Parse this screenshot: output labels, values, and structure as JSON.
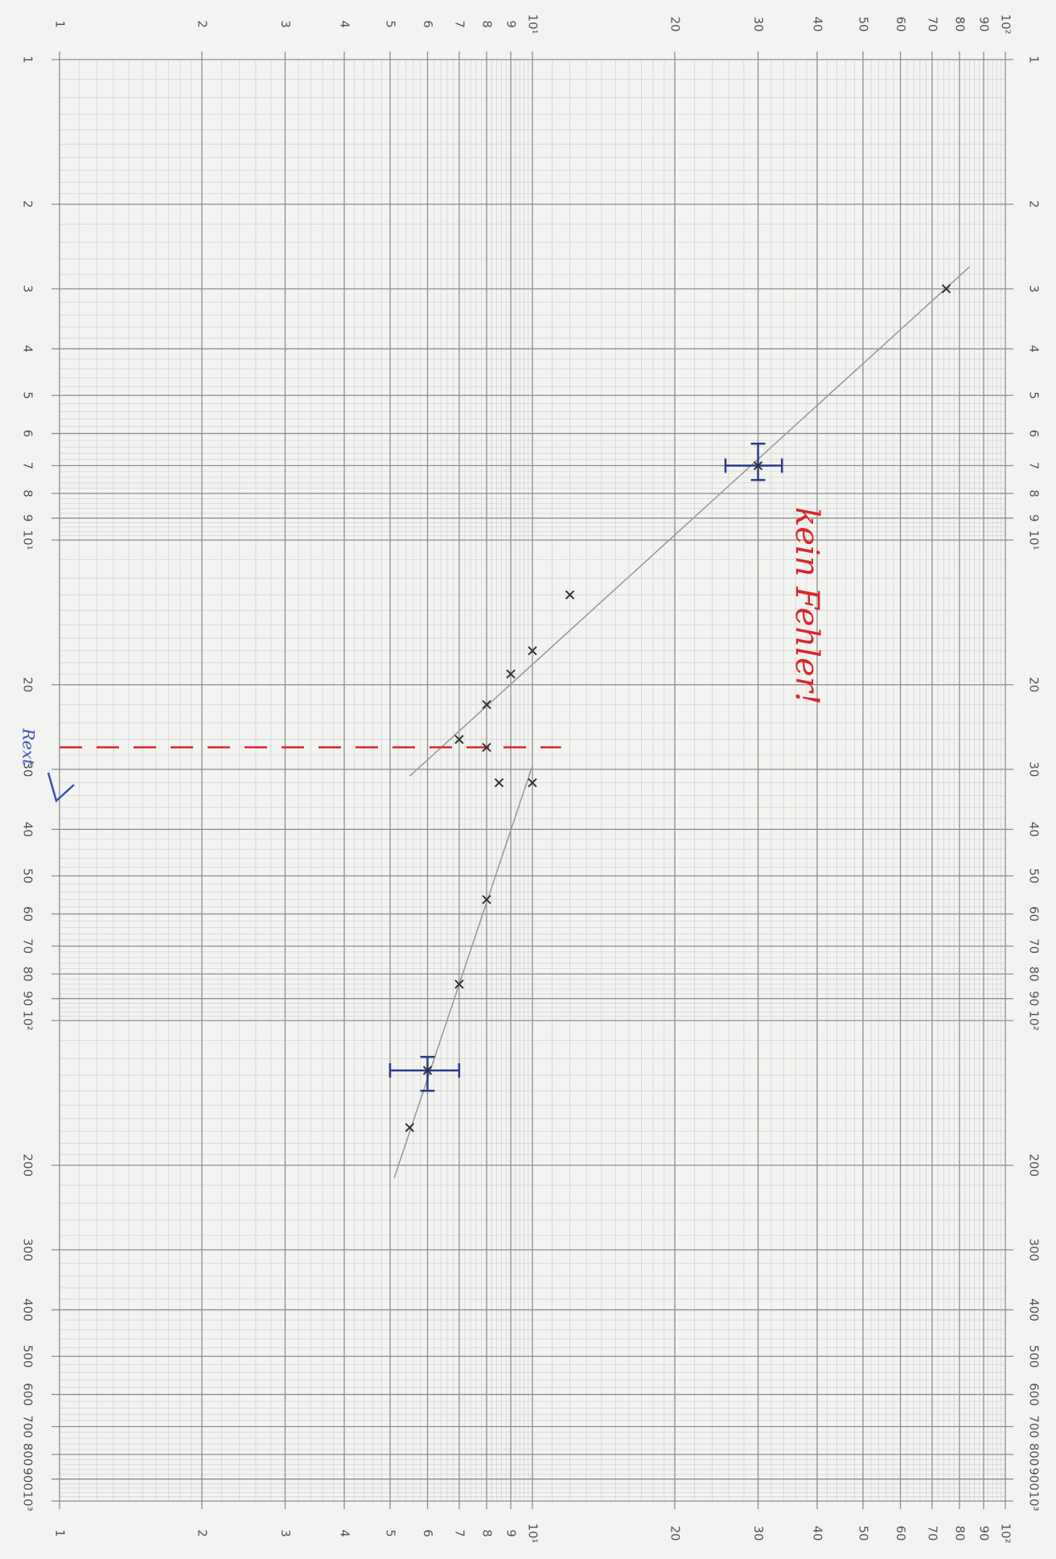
{
  "chart_data": {
    "type": "scatter",
    "xscale": "log",
    "yscale": "log",
    "xlim": [
      1,
      100
    ],
    "ylim": [
      1,
      1000
    ],
    "xticks": [
      1,
      2,
      3,
      4,
      5,
      6,
      7,
      8,
      9,
      {
        "value": 10,
        "label": "10¹"
      },
      20,
      30,
      40,
      50,
      60,
      70,
      80,
      90,
      {
        "value": 100,
        "label": "10²"
      }
    ],
    "yticks": [
      1,
      2,
      3,
      4,
      5,
      6,
      7,
      8,
      9,
      {
        "value": 10,
        "label": "10¹"
      },
      20,
      30,
      40,
      50,
      60,
      70,
      80,
      90,
      {
        "value": 100,
        "label": "10²"
      },
      200,
      300,
      400,
      500,
      600,
      700,
      800,
      900,
      {
        "value": 1000,
        "label": "10³"
      }
    ],
    "grid": true,
    "color": "#333333",
    "x": [
      75,
      30,
      12,
      10,
      9,
      8,
      7,
      8,
      8.5,
      10,
      8,
      7,
      6,
      5.5
    ],
    "values": [
      3.0,
      7,
      13,
      17,
      19,
      22,
      26,
      27,
      32,
      32,
      56,
      84,
      127,
      167
    ],
    "error_bars": {
      "color": "#2a3a8a",
      "items": [
        {
          "x": 30,
          "y": 7,
          "xerr": [
            25.6,
            33.7
          ],
          "yerr": [
            6.3,
            7.5
          ]
        },
        {
          "x": 6,
          "y": 127,
          "xerr": [
            5.0,
            7.0
          ],
          "yerr": [
            119,
            140
          ]
        }
      ]
    },
    "lines": [
      {
        "x": [
          5.5,
          84
        ],
        "values": [
          31,
          2.7
        ],
        "color": "#9a9a9a"
      },
      {
        "x": [
          10,
          5.1
        ],
        "values": [
          29.5,
          213
        ],
        "color": "#9a9a9a"
      },
      {
        "x": [
          1,
          11.5
        ],
        "values": [
          27,
          27
        ],
        "color": "#d9262c",
        "dashed": true
      }
    ],
    "annotations": [
      {
        "text": "kein Fehler!",
        "color": "#d9262c"
      },
      {
        "text": "Rext",
        "color": "#3a4fb8"
      }
    ]
  }
}
